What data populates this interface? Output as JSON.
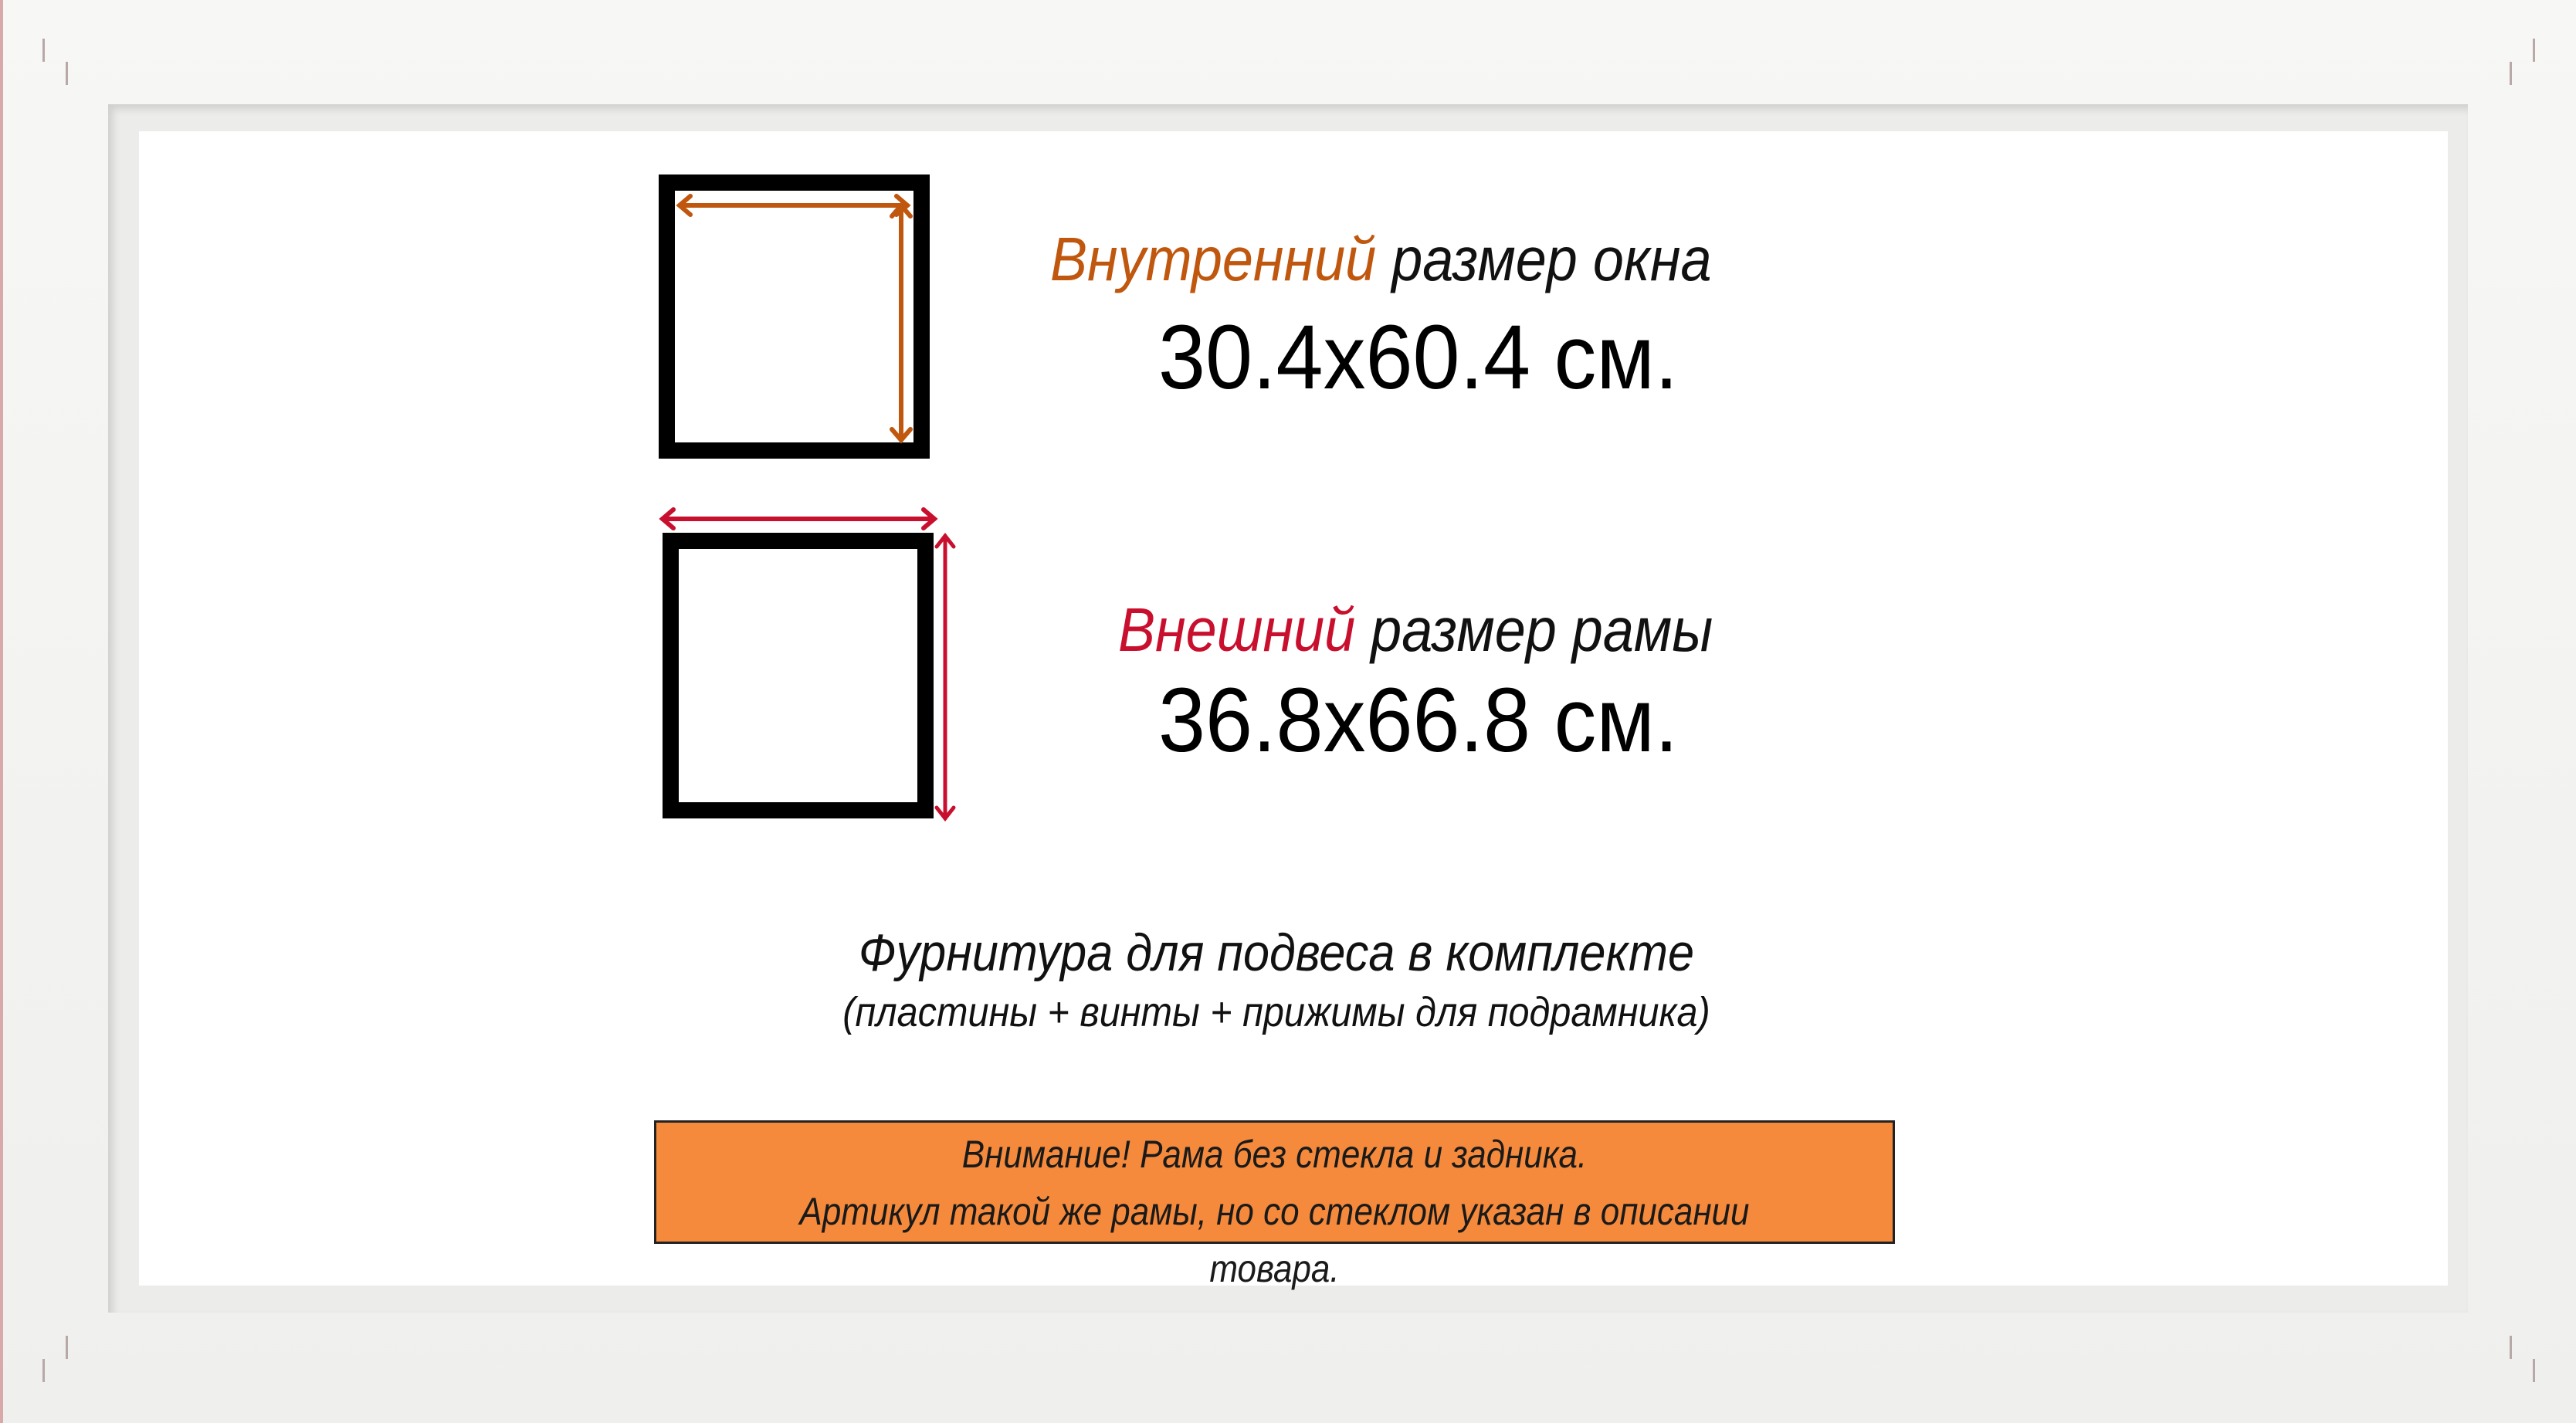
{
  "inner_size": {
    "label_accent": "Внутренний",
    "label_rest": "размер окна",
    "value": "30.4x60.4 см.",
    "accent_color": "#c0570e"
  },
  "outer_size": {
    "label_accent": "Внешний",
    "label_rest": "размер рамы",
    "value": "36.8x66.8 см.",
    "accent_color": "#c8102e"
  },
  "accessories": {
    "title": "Фурнитура для подвеса в комплекте",
    "details": "(пластины + винты + прижимы для подрамника)"
  },
  "notice": {
    "line1": "Внимание! Рама без стекла и задника.",
    "line2": "Артикул такой же рамы, но со стеклом указан в описании товара.",
    "background_color": "#f58a3c"
  },
  "frame_color": "#f4f4f2"
}
